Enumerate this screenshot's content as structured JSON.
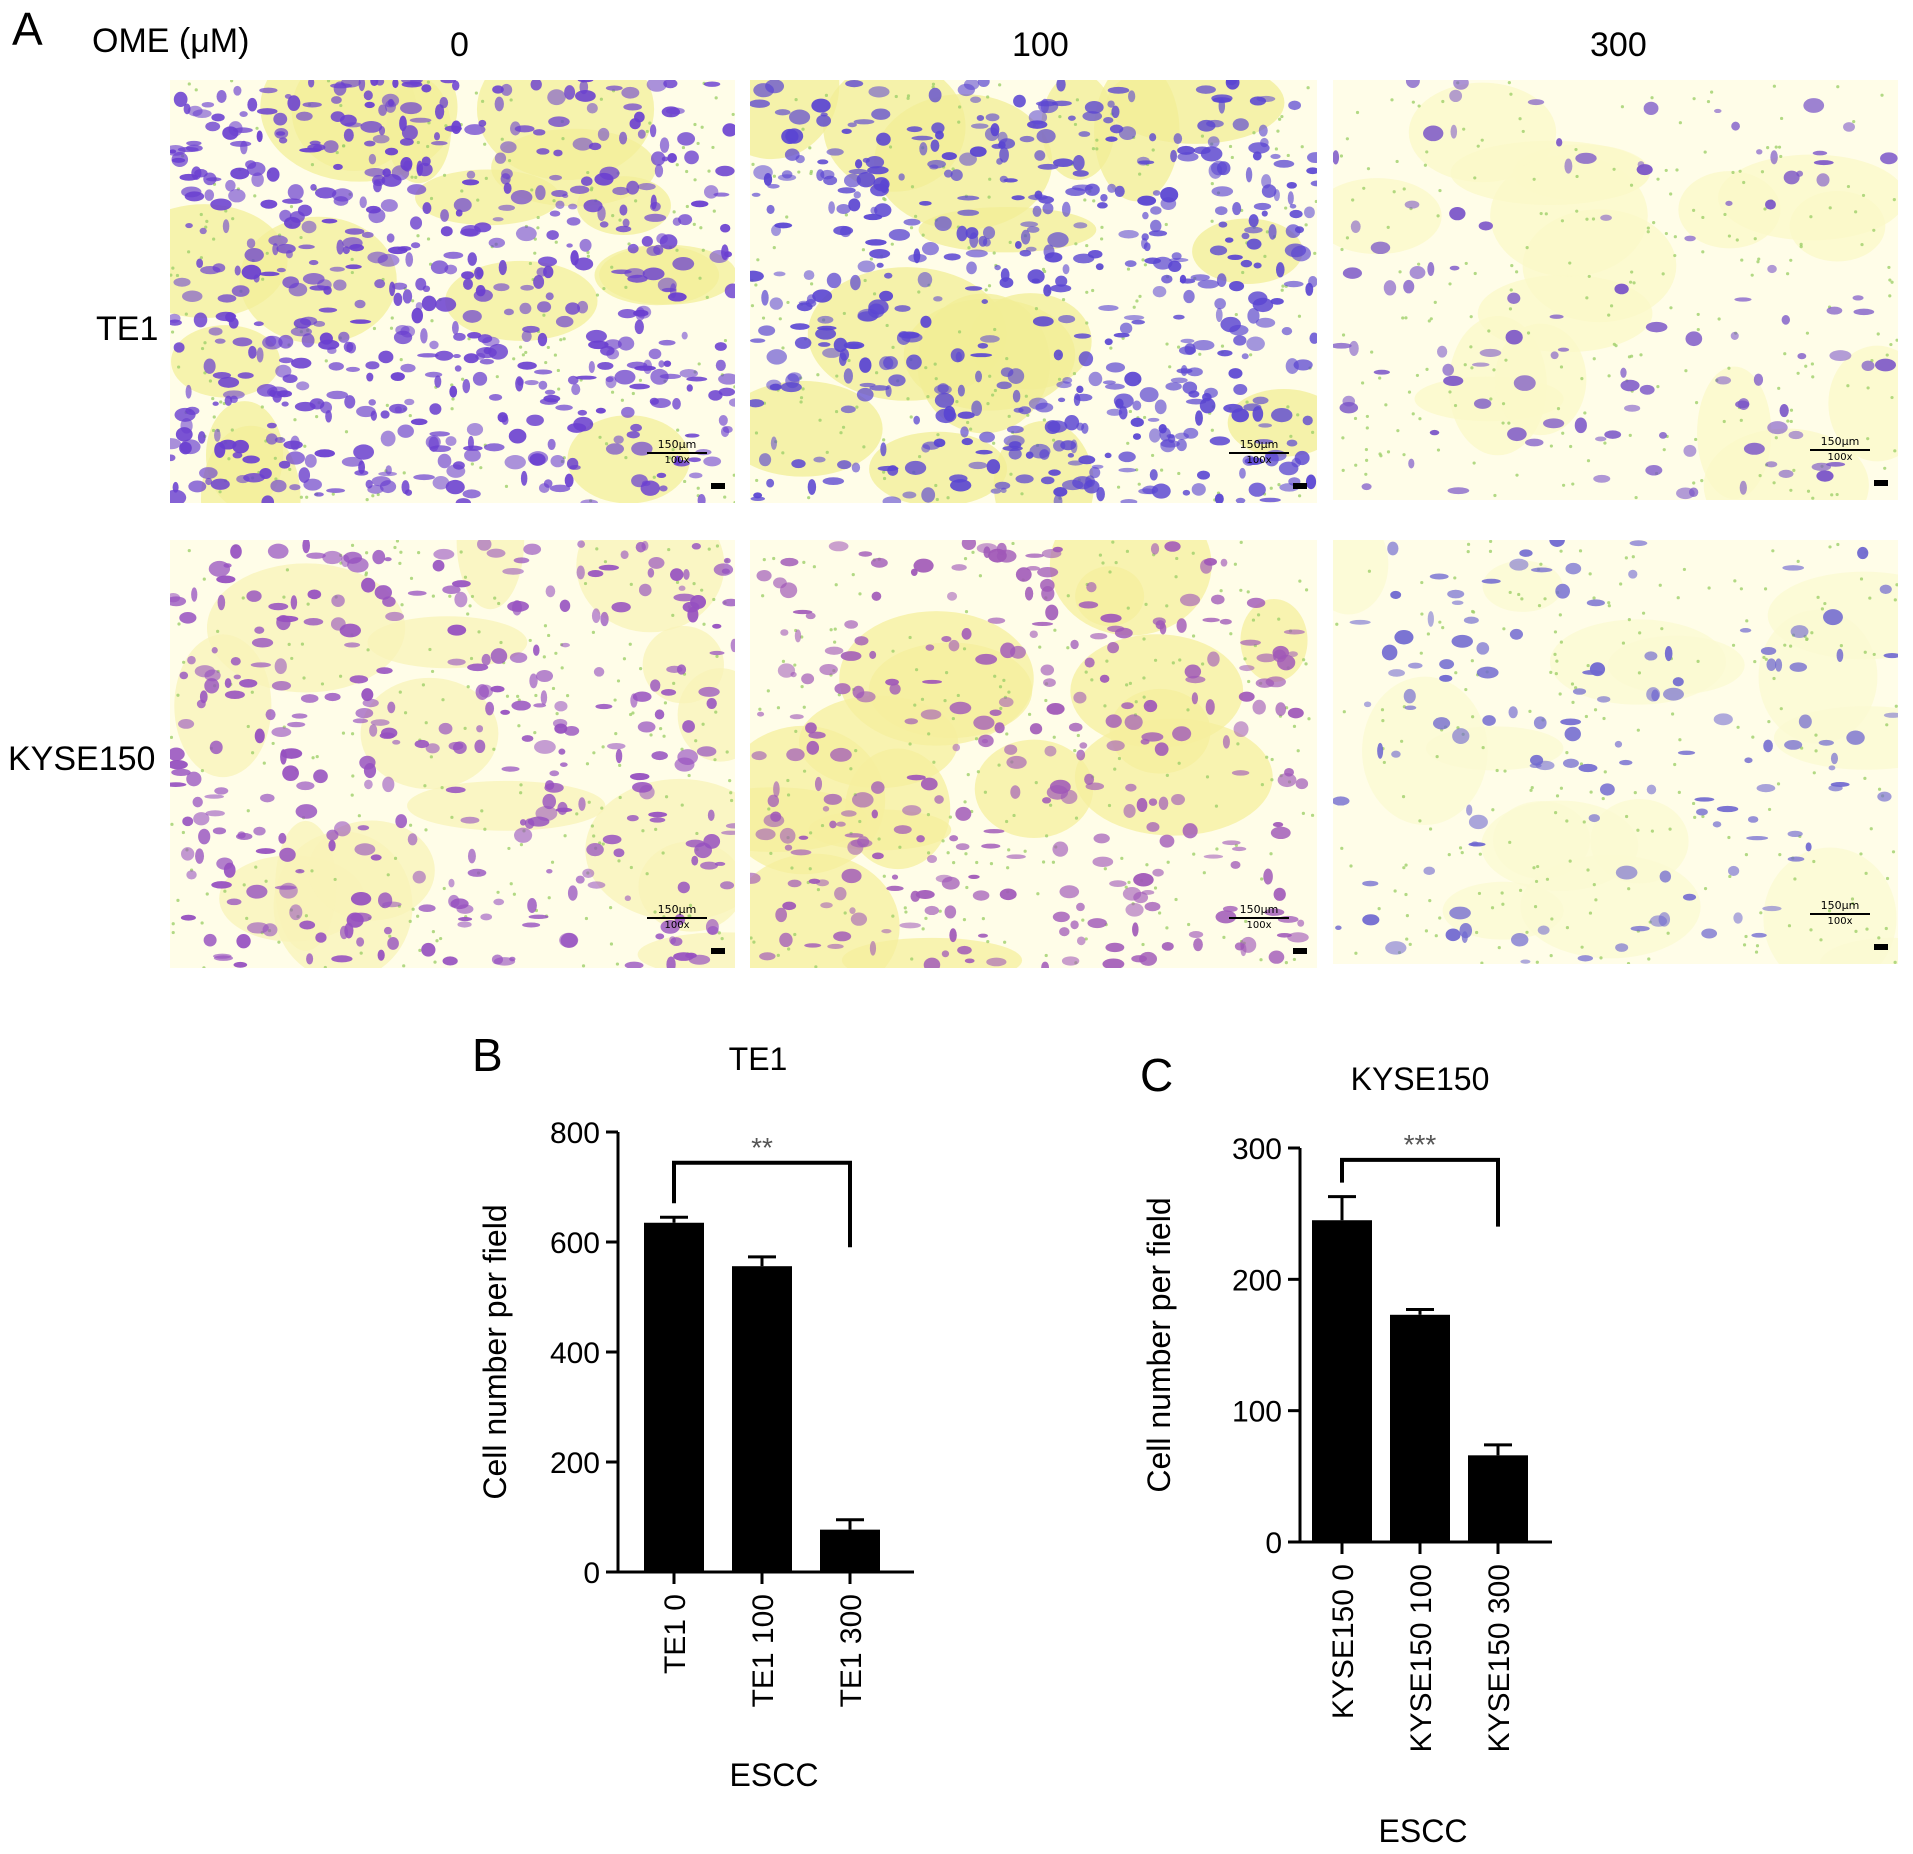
{
  "figure_a": {
    "panel_letter": "A",
    "treatment_label": "OME (μM)",
    "columns": [
      "0",
      "100",
      "300"
    ],
    "rows": [
      "TE1",
      "KYSE150"
    ],
    "scale_bar_top": "150μm",
    "scale_bar_bottom": "100x",
    "tiles": [
      {
        "row": "TE1",
        "col": "0",
        "density": 0.85,
        "cell_color": "#6a3fd0",
        "tint": "#f3ef9a"
      },
      {
        "row": "TE1",
        "col": "100",
        "density": 0.75,
        "cell_color": "#5a45d2",
        "tint": "#f1ee95"
      },
      {
        "row": "TE1",
        "col": "300",
        "density": 0.15,
        "cell_color": "#7a54c8",
        "tint": "#fbf8c8"
      },
      {
        "row": "KYSE150",
        "col": "0",
        "density": 0.45,
        "cell_color": "#9650c0",
        "tint": "#f8f3b8"
      },
      {
        "row": "KYSE150",
        "col": "100",
        "density": 0.4,
        "cell_color": "#a058b8",
        "tint": "#f6ef9e"
      },
      {
        "row": "KYSE150",
        "col": "300",
        "density": 0.18,
        "cell_color": "#7068d0",
        "tint": "#fbf9d2"
      }
    ]
  },
  "chart_data": [
    {
      "panel_letter": "B",
      "type": "bar",
      "title": "TE1",
      "categories": [
        "TE1 0",
        "TE1 100",
        "TE1 300"
      ],
      "values": [
        635,
        556,
        77
      ],
      "errors": [
        10,
        17,
        18
      ],
      "ylabel": "Cell number per field",
      "xlabel": "ESCC",
      "ylim": [
        0,
        800
      ],
      "yticks": [
        "0",
        "200",
        "400",
        "600",
        "800"
      ],
      "significance": {
        "from": "TE1 0",
        "to": "TE1 300",
        "label": "**"
      },
      "bar_color": "#000000"
    },
    {
      "panel_letter": "C",
      "type": "bar",
      "title": "KYSE150",
      "categories": [
        "KYSE150 0",
        "KYSE150 100",
        "KYSE150 300"
      ],
      "values": [
        245,
        173,
        66
      ],
      "errors": [
        18,
        4,
        8
      ],
      "ylabel": "Cell number per field",
      "xlabel": "ESCC",
      "ylim": [
        0,
        300
      ],
      "yticks": [
        "0",
        "100",
        "200",
        "300"
      ],
      "significance": {
        "from": "KYSE150 0",
        "to": "KYSE150 300",
        "label": "***"
      },
      "bar_color": "#000000"
    }
  ]
}
